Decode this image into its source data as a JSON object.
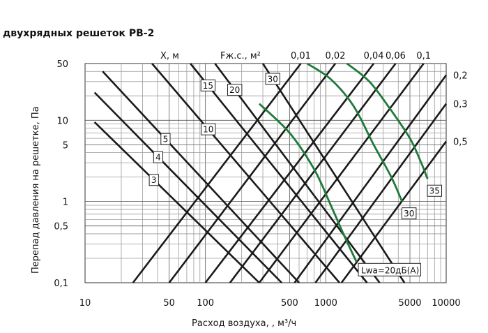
{
  "chart_data": {
    "type": "line",
    "title": "двухрядных решеток РВ-2",
    "xlabel": "Расход воздуха, , м³/ч",
    "ylabel": "Перепад давления на решетке, Па",
    "xscale": "log",
    "yscale": "log",
    "xlim": [
      10,
      10000
    ],
    "ylim": [
      0.1,
      50
    ],
    "grid": true,
    "x_ticks": [
      {
        "value": 10,
        "label": "10"
      },
      {
        "value": 50,
        "label": "50"
      },
      {
        "value": 100,
        "label": "100"
      },
      {
        "value": 500,
        "label": "500"
      },
      {
        "value": 1000,
        "label": "1000"
      },
      {
        "value": 5000,
        "label": "5000"
      },
      {
        "value": 10000,
        "label": "10000"
      }
    ],
    "y_ticks": [
      {
        "value": 50,
        "label": "50"
      },
      {
        "value": 10,
        "label": "10"
      },
      {
        "value": 5,
        "label": "5"
      },
      {
        "value": 1,
        "label": "1"
      },
      {
        "value": 0.5,
        "label": "0,5"
      },
      {
        "value": 0.1,
        "label": "0,1"
      }
    ],
    "throw_family_label": "X, м",
    "throw_lines": [
      {
        "label": "3",
        "x": [
          12,
          280
        ],
        "y": [
          9.5,
          0.1
        ]
      },
      {
        "label": "4",
        "x": [
          12,
          430
        ],
        "y": [
          22,
          0.1
        ]
      },
      {
        "label": "5",
        "x": [
          14,
          600
        ],
        "y": [
          40,
          0.1
        ]
      },
      {
        "label": "10",
        "x": [
          36,
          1300
        ],
        "y": [
          50,
          0.1
        ]
      },
      {
        "label": "15",
        "x": [
          75,
          2200
        ],
        "y": [
          50,
          0.1
        ]
      },
      {
        "label": "20",
        "x": [
          120,
          2800
        ],
        "y": [
          50,
          0.1
        ]
      },
      {
        "label": "30",
        "x": [
          300,
          4500
        ],
        "y": [
          50,
          0.1
        ]
      }
    ],
    "area_family_label": "Fж.с., м²",
    "area_lines": [
      {
        "label": "0,01",
        "x": [
          25,
          620
        ],
        "y": [
          0.1,
          50
        ]
      },
      {
        "label": "0,02",
        "x": [
          50,
          1200
        ],
        "y": [
          0.1,
          50
        ]
      },
      {
        "label": "0,04",
        "x": [
          100,
          2500
        ],
        "y": [
          0.1,
          50
        ]
      },
      {
        "label": "0,06",
        "x": [
          160,
          3800
        ],
        "y": [
          0.1,
          50
        ]
      },
      {
        "label": "0,1",
        "x": [
          280,
          6500
        ],
        "y": [
          0.1,
          50
        ]
      },
      {
        "label": "0,2",
        "x": [
          550,
          10000
        ],
        "y": [
          0.1,
          36
        ]
      },
      {
        "label": "0,3",
        "x": [
          820,
          10000
        ],
        "y": [
          0.1,
          16
        ]
      },
      {
        "label": "0,5",
        "x": [
          1350,
          10000
        ],
        "y": [
          0.1,
          5.5
        ]
      }
    ],
    "noise_family_label": "Lwa=20дБ(А)",
    "noise_lines": [
      {
        "label": "20",
        "x": [
          280,
          500,
          800,
          1100,
          1400,
          1800
        ],
        "y": [
          16,
          7,
          2.5,
          0.9,
          0.4,
          0.18
        ]
      },
      {
        "label": "30",
        "x": [
          700,
          1100,
          1700,
          2500,
          3500,
          4300
        ],
        "y": [
          50,
          32,
          15,
          5,
          2,
          1.0
        ]
      },
      {
        "label": "35",
        "x": [
          1500,
          2300,
          3400,
          5000,
          6200,
          7000
        ],
        "y": [
          50,
          30,
          14,
          6,
          3,
          1.9
        ]
      }
    ]
  }
}
